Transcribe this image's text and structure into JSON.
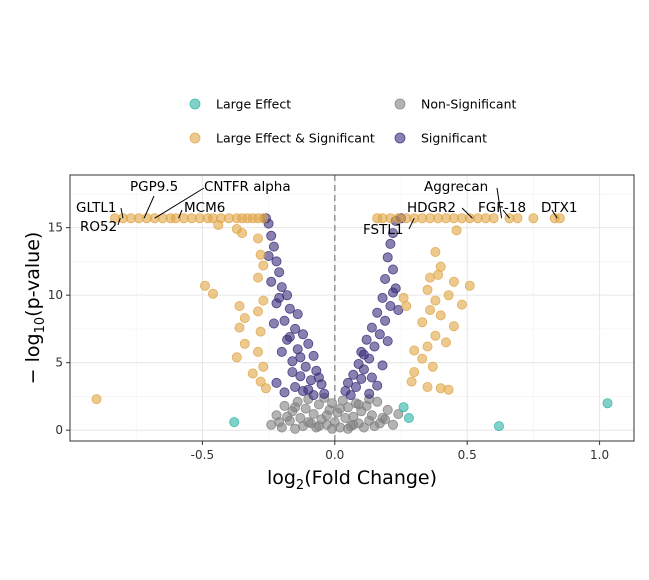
{
  "chart_data": {
    "type": "scatter",
    "title": "",
    "xlabel": {
      "base": "log",
      "sub": "2",
      "rest": "(Fold Change)"
    },
    "ylabel": {
      "prefix": "− log",
      "sub": "10",
      "rest": "(p-value)"
    },
    "xlim": [
      -1.0,
      1.13
    ],
    "ylim": [
      -0.8,
      18.9
    ],
    "x_ticks": [
      -0.5,
      0.0,
      0.5,
      1.0
    ],
    "x_tick_labels": [
      "-0.5",
      "0.0",
      "0.5",
      "1.0"
    ],
    "y_ticks": [
      0,
      5,
      10,
      15
    ],
    "y_tick_labels": [
      "0",
      "5",
      "10",
      "15"
    ],
    "grid": true,
    "vline_x": 0,
    "legend_position": "top",
    "colors": {
      "Large Effect": "#2bb3a6",
      "Non-Significant": "#808080",
      "Large Effect & Significant": "#e0a545",
      "Significant": "#3a2d7a"
    },
    "legend": [
      {
        "label": "Large Effect",
        "color": "#2bb3a6"
      },
      {
        "label": "Non-Significant",
        "color": "#808080"
      },
      {
        "label": "Large Effect & Significant",
        "color": "#e0a545"
      },
      {
        "label": "Significant",
        "color": "#3a2d7a"
      }
    ],
    "series": [
      {
        "name": "Large Effect",
        "points": [
          [
            -0.38,
            0.6
          ],
          [
            0.26,
            1.7
          ],
          [
            0.28,
            0.9
          ],
          [
            0.62,
            0.3
          ],
          [
            1.03,
            2.0
          ]
        ]
      },
      {
        "name": "Large Effect & Significant",
        "points": [
          [
            -0.9,
            2.3
          ],
          [
            -0.83,
            15.7
          ],
          [
            -0.8,
            15.7
          ],
          [
            -0.77,
            15.7
          ],
          [
            -0.74,
            15.7
          ],
          [
            -0.71,
            15.7
          ],
          [
            -0.68,
            15.7
          ],
          [
            -0.65,
            15.7
          ],
          [
            -0.62,
            15.7
          ],
          [
            -0.6,
            15.7
          ],
          [
            -0.57,
            15.7
          ],
          [
            -0.54,
            15.7
          ],
          [
            -0.51,
            15.7
          ],
          [
            -0.48,
            15.7
          ],
          [
            -0.46,
            15.7
          ],
          [
            -0.43,
            15.7
          ],
          [
            -0.4,
            15.7
          ],
          [
            -0.37,
            15.7
          ],
          [
            -0.35,
            15.7
          ],
          [
            -0.33,
            15.7
          ],
          [
            -0.31,
            15.7
          ],
          [
            -0.29,
            15.7
          ],
          [
            -0.27,
            15.7
          ],
          [
            -0.44,
            15.2
          ],
          [
            -0.37,
            14.9
          ],
          [
            -0.35,
            14.6
          ],
          [
            -0.29,
            14.2
          ],
          [
            -0.28,
            13.0
          ],
          [
            -0.27,
            12.2
          ],
          [
            -0.29,
            11.3
          ],
          [
            -0.49,
            10.7
          ],
          [
            -0.46,
            10.1
          ],
          [
            -0.36,
            9.2
          ],
          [
            -0.27,
            9.6
          ],
          [
            -0.29,
            8.8
          ],
          [
            -0.34,
            8.3
          ],
          [
            -0.36,
            7.6
          ],
          [
            -0.28,
            7.3
          ],
          [
            -0.34,
            6.4
          ],
          [
            -0.37,
            5.4
          ],
          [
            -0.29,
            5.8
          ],
          [
            -0.27,
            4.7
          ],
          [
            -0.31,
            4.2
          ],
          [
            -0.28,
            3.6
          ],
          [
            -0.26,
            3.1
          ],
          [
            0.16,
            15.7
          ],
          [
            0.18,
            15.7
          ],
          [
            0.21,
            15.7
          ],
          [
            0.24,
            15.7
          ],
          [
            0.27,
            15.7
          ],
          [
            0.3,
            15.7
          ],
          [
            0.33,
            15.7
          ],
          [
            0.36,
            15.7
          ],
          [
            0.39,
            15.7
          ],
          [
            0.42,
            15.7
          ],
          [
            0.45,
            15.7
          ],
          [
            0.48,
            15.7
          ],
          [
            0.51,
            15.7
          ],
          [
            0.54,
            15.7
          ],
          [
            0.57,
            15.7
          ],
          [
            0.6,
            15.7
          ],
          [
            0.66,
            15.7
          ],
          [
            0.69,
            15.7
          ],
          [
            0.75,
            15.7
          ],
          [
            0.83,
            15.7
          ],
          [
            0.85,
            15.7
          ],
          [
            0.46,
            14.8
          ],
          [
            0.38,
            13.2
          ],
          [
            0.4,
            12.1
          ],
          [
            0.36,
            11.3
          ],
          [
            0.39,
            11.5
          ],
          [
            0.45,
            11.0
          ],
          [
            0.51,
            10.7
          ],
          [
            0.35,
            10.4
          ],
          [
            0.43,
            10.0
          ],
          [
            0.38,
            9.6
          ],
          [
            0.26,
            9.8
          ],
          [
            0.27,
            9.2
          ],
          [
            0.48,
            9.3
          ],
          [
            0.36,
            8.9
          ],
          [
            0.4,
            8.5
          ],
          [
            0.33,
            8.0
          ],
          [
            0.45,
            7.7
          ],
          [
            0.38,
            7.0
          ],
          [
            0.42,
            6.5
          ],
          [
            0.35,
            6.2
          ],
          [
            0.3,
            5.9
          ],
          [
            0.33,
            5.3
          ],
          [
            0.37,
            4.7
          ],
          [
            0.3,
            4.3
          ],
          [
            0.35,
            3.2
          ],
          [
            0.4,
            3.1
          ],
          [
            0.43,
            3.0
          ],
          [
            0.29,
            3.6
          ]
        ]
      },
      {
        "name": "Significant",
        "points": [
          [
            -0.26,
            15.7
          ],
          [
            -0.25,
            15.3
          ],
          [
            -0.24,
            14.4
          ],
          [
            -0.23,
            13.6
          ],
          [
            -0.25,
            12.9
          ],
          [
            -0.22,
            12.5
          ],
          [
            -0.21,
            11.7
          ],
          [
            -0.24,
            11.0
          ],
          [
            -0.2,
            10.6
          ],
          [
            -0.18,
            10.0
          ],
          [
            -0.22,
            9.4
          ],
          [
            -0.17,
            9.0
          ],
          [
            -0.14,
            8.6
          ],
          [
            -0.19,
            8.1
          ],
          [
            -0.15,
            7.5
          ],
          [
            -0.12,
            7.1
          ],
          [
            -0.18,
            6.7
          ],
          [
            -0.1,
            6.4
          ],
          [
            -0.14,
            6.0
          ],
          [
            -0.08,
            5.5
          ],
          [
            -0.16,
            5.1
          ],
          [
            -0.11,
            4.7
          ],
          [
            -0.07,
            4.4
          ],
          [
            -0.13,
            4.0
          ],
          [
            -0.09,
            3.7
          ],
          [
            -0.05,
            3.4
          ],
          [
            -0.15,
            3.2
          ],
          [
            -0.12,
            2.9
          ],
          [
            -0.08,
            2.6
          ],
          [
            -0.19,
            2.8
          ],
          [
            -0.22,
            3.5
          ],
          [
            -0.2,
            5.8
          ],
          [
            -0.23,
            7.9
          ],
          [
            -0.16,
            4.3
          ],
          [
            -0.1,
            3.0
          ],
          [
            -0.04,
            2.7
          ],
          [
            -0.06,
            3.9
          ],
          [
            -0.13,
            5.4
          ],
          [
            -0.17,
            6.9
          ],
          [
            -0.21,
            9.8
          ],
          [
            0.25,
            15.7
          ],
          [
            0.23,
            15.5
          ],
          [
            0.22,
            14.6
          ],
          [
            0.21,
            13.8
          ],
          [
            0.2,
            12.8
          ],
          [
            0.22,
            11.9
          ],
          [
            0.19,
            11.2
          ],
          [
            0.23,
            10.5
          ],
          [
            0.18,
            9.8
          ],
          [
            0.21,
            9.2
          ],
          [
            0.16,
            8.7
          ],
          [
            0.19,
            8.1
          ],
          [
            0.14,
            7.6
          ],
          [
            0.17,
            7.1
          ],
          [
            0.12,
            6.7
          ],
          [
            0.15,
            6.2
          ],
          [
            0.1,
            5.8
          ],
          [
            0.13,
            5.3
          ],
          [
            0.09,
            4.9
          ],
          [
            0.11,
            4.5
          ],
          [
            0.07,
            4.1
          ],
          [
            0.1,
            3.8
          ],
          [
            0.05,
            3.5
          ],
          [
            0.08,
            3.2
          ],
          [
            0.04,
            2.9
          ],
          [
            0.13,
            2.7
          ],
          [
            0.16,
            3.3
          ],
          [
            0.18,
            4.8
          ],
          [
            0.2,
            6.6
          ],
          [
            0.24,
            8.9
          ],
          [
            0.14,
            3.9
          ],
          [
            0.06,
            2.6
          ],
          [
            0.11,
            5.6
          ],
          [
            0.22,
            10.2
          ]
        ]
      },
      {
        "name": "Non-Significant",
        "points": [
          [
            -0.24,
            0.4
          ],
          [
            -0.22,
            1.1
          ],
          [
            -0.2,
            0.2
          ],
          [
            -0.19,
            1.8
          ],
          [
            -0.17,
            0.7
          ],
          [
            -0.16,
            1.4
          ],
          [
            -0.15,
            0.1
          ],
          [
            -0.14,
            2.1
          ],
          [
            -0.13,
            0.9
          ],
          [
            -0.12,
            0.3
          ],
          [
            -0.11,
            1.6
          ],
          [
            -0.1,
            2.3
          ],
          [
            -0.09,
            0.5
          ],
          [
            -0.08,
            1.2
          ],
          [
            -0.07,
            0.2
          ],
          [
            -0.06,
            1.9
          ],
          [
            -0.05,
            0.8
          ],
          [
            -0.04,
            2.4
          ],
          [
            -0.03,
            0.4
          ],
          [
            -0.02,
            1.5
          ],
          [
            -0.01,
            0.1
          ],
          [
            0.0,
            0.6
          ],
          [
            0.01,
            1.3
          ],
          [
            0.02,
            0.2
          ],
          [
            0.03,
            2.2
          ],
          [
            0.04,
            0.9
          ],
          [
            0.05,
            1.7
          ],
          [
            0.06,
            0.3
          ],
          [
            0.07,
            1.0
          ],
          [
            0.08,
            2.0
          ],
          [
            0.09,
            0.5
          ],
          [
            0.1,
            1.4
          ],
          [
            0.11,
            0.2
          ],
          [
            0.12,
            1.8
          ],
          [
            0.13,
            0.7
          ],
          [
            0.14,
            1.1
          ],
          [
            0.15,
            0.3
          ],
          [
            0.16,
            2.1
          ],
          [
            0.18,
            0.9
          ],
          [
            0.2,
            1.5
          ],
          [
            0.22,
            0.4
          ],
          [
            0.24,
            1.2
          ],
          [
            -0.21,
            0.6
          ],
          [
            -0.18,
            1.0
          ],
          [
            -0.06,
            0.3
          ],
          [
            0.02,
            1.6
          ],
          [
            0.09,
            1.9
          ],
          [
            0.17,
            0.5
          ],
          [
            -0.01,
            2.0
          ],
          [
            0.05,
            0.1
          ],
          [
            -0.1,
            0.6
          ],
          [
            0.13,
            2.3
          ],
          [
            -0.15,
            1.7
          ],
          [
            0.19,
            0.8
          ],
          [
            -0.03,
            1.1
          ],
          [
            0.07,
            0.4
          ]
        ]
      }
    ],
    "annotations": [
      {
        "label": "PGP9.5",
        "x": -0.72,
        "y": 15.7
      },
      {
        "label": "CNTFR alpha",
        "x": -0.68,
        "y": 15.7
      },
      {
        "label": "GLTL1",
        "x": -0.8,
        "y": 15.7
      },
      {
        "label": "MCM6",
        "x": -0.59,
        "y": 15.7
      },
      {
        "label": "RO52",
        "x": -0.81,
        "y": 15.7
      },
      {
        "label": "Aggrecan",
        "x": 0.63,
        "y": 15.7
      },
      {
        "label": "HDGR2",
        "x": 0.52,
        "y": 15.7
      },
      {
        "label": "FGF-18",
        "x": 0.66,
        "y": 15.7
      },
      {
        "label": "DTX1",
        "x": 0.84,
        "y": 15.7
      },
      {
        "label": "FSTL1",
        "x": 0.3,
        "y": 15.7
      }
    ]
  }
}
